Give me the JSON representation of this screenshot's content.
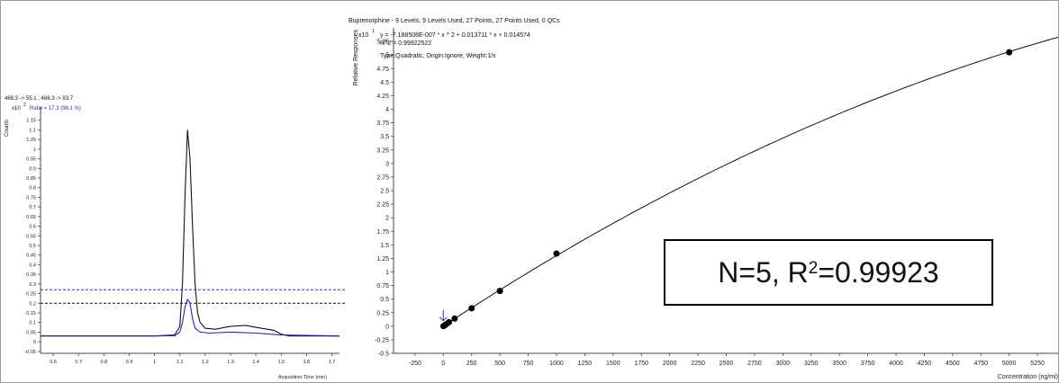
{
  "chart_data": [
    {
      "type": "line",
      "header_mrm": "468.3 -> 55.1 , 468.3 -> 83.7",
      "header_ratio": "Ratio = 17.3 (98.1 %)",
      "y_multiplier": "x10",
      "y_exponent": "2",
      "ylabel": "Counts",
      "xlabel": "Acquisition Time (min)",
      "xlim": [
        0.55,
        1.73
      ],
      "ylim": [
        -0.06,
        1.2
      ],
      "x_ticks": [
        "0.6",
        "0.7",
        "0.8",
        "0.9",
        "1",
        "1.1",
        "1.2",
        "1.3",
        "1.4",
        "1.5",
        "1.6",
        "1.7"
      ],
      "y_ticks": [
        "-0.05",
        "0",
        "0.05",
        "0.1",
        "0.15",
        "0.2",
        "0.25",
        "0.3",
        "0.35",
        "0.4",
        "0.45",
        "0.5",
        "0.55",
        "0.6",
        "0.65",
        "0.7",
        "0.75",
        "0.8",
        "0.85",
        "0.9",
        "0.95",
        "1",
        "1.05",
        "1.1",
        "1.15"
      ],
      "reference_lines": [
        {
          "y": 0.27,
          "color": "#2b2bd0"
        },
        {
          "y": 0.2,
          "color": "#111111"
        }
      ],
      "series": [
        {
          "color": "#111111",
          "x": [
            0.55,
            1.0,
            1.08,
            1.1,
            1.11,
            1.12,
            1.13,
            1.14,
            1.15,
            1.16,
            1.17,
            1.18,
            1.2,
            1.24,
            1.3,
            1.36,
            1.42,
            1.47,
            1.5,
            1.53,
            1.6,
            1.73
          ],
          "y": [
            0.03,
            0.03,
            0.035,
            0.08,
            0.3,
            0.75,
            1.1,
            0.95,
            0.6,
            0.3,
            0.15,
            0.1,
            0.07,
            0.065,
            0.08,
            0.085,
            0.07,
            0.06,
            0.04,
            0.03,
            0.03,
            0.03
          ]
        },
        {
          "color": "#1f1fcf",
          "x": [
            0.55,
            1.0,
            1.08,
            1.1,
            1.11,
            1.12,
            1.13,
            1.14,
            1.15,
            1.16,
            1.18,
            1.22,
            1.3,
            1.4,
            1.5,
            1.73
          ],
          "y": [
            0.03,
            0.03,
            0.032,
            0.05,
            0.1,
            0.18,
            0.22,
            0.2,
            0.12,
            0.07,
            0.05,
            0.045,
            0.05,
            0.045,
            0.035,
            0.03
          ]
        }
      ]
    },
    {
      "type": "scatter",
      "title": "Buprenorphine - 9 Levels, 9 Levels Used, 27 Points, 27 Points Used, 0 QCs",
      "y_multiplier": "x10",
      "y_exponent": "1",
      "equation": "y = -7.188508E-007 * x ^ 2  + 0.013711 * x  + 0.014574",
      "r_squared": "R^2 = 0.99922522",
      "fit_type": "Type:Quadratic, Origin:Ignore, Weight:1/x",
      "ylabel": "Relative Responses",
      "xlabel": "Concentration (ng/ml)",
      "xlim": [
        -440,
        5480
      ],
      "ylim": [
        -0.5,
        5.5
      ],
      "x_ticks": [
        "-250",
        "0",
        "250",
        "500",
        "750",
        "1000",
        "1250",
        "1500",
        "1750",
        "2000",
        "2250",
        "2500",
        "2750",
        "3000",
        "3250",
        "3500",
        "3750",
        "4000",
        "4250",
        "4500",
        "4750",
        "5000",
        "5250"
      ],
      "y_ticks": [
        "-0.5",
        "-0.25",
        "0",
        "0.25",
        "0.5",
        "0.75",
        "1",
        "1.25",
        "1.5",
        "1.75",
        "2",
        "2.25",
        "2.5",
        "2.75",
        "3",
        "3.25",
        "3.5",
        "3.75",
        "4",
        "4.25",
        "4.5",
        "4.75",
        "5",
        "5.25"
      ],
      "fit": {
        "a": -7.188508e-07,
        "b": 0.013711,
        "c": 0.014574,
        "unit_divisor": 10
      },
      "points": [
        {
          "x": 1,
          "y": 0.002
        },
        {
          "x": 10,
          "y": 0.0125
        },
        {
          "x": 25,
          "y": 0.036
        },
        {
          "x": 50,
          "y": 0.073
        },
        {
          "x": 100,
          "y": 0.14
        },
        {
          "x": 250,
          "y": 0.33
        },
        {
          "x": 500,
          "y": 0.65
        },
        {
          "x": 1000,
          "y": 1.34
        },
        {
          "x": 5000,
          "y": 5.05
        }
      ],
      "marker_color": "#000000",
      "arrow_color": "#2b2bd0"
    }
  ],
  "annotation": {
    "prefix": "N=5, R",
    "superscript": "2",
    "suffix": "=0.99923"
  }
}
